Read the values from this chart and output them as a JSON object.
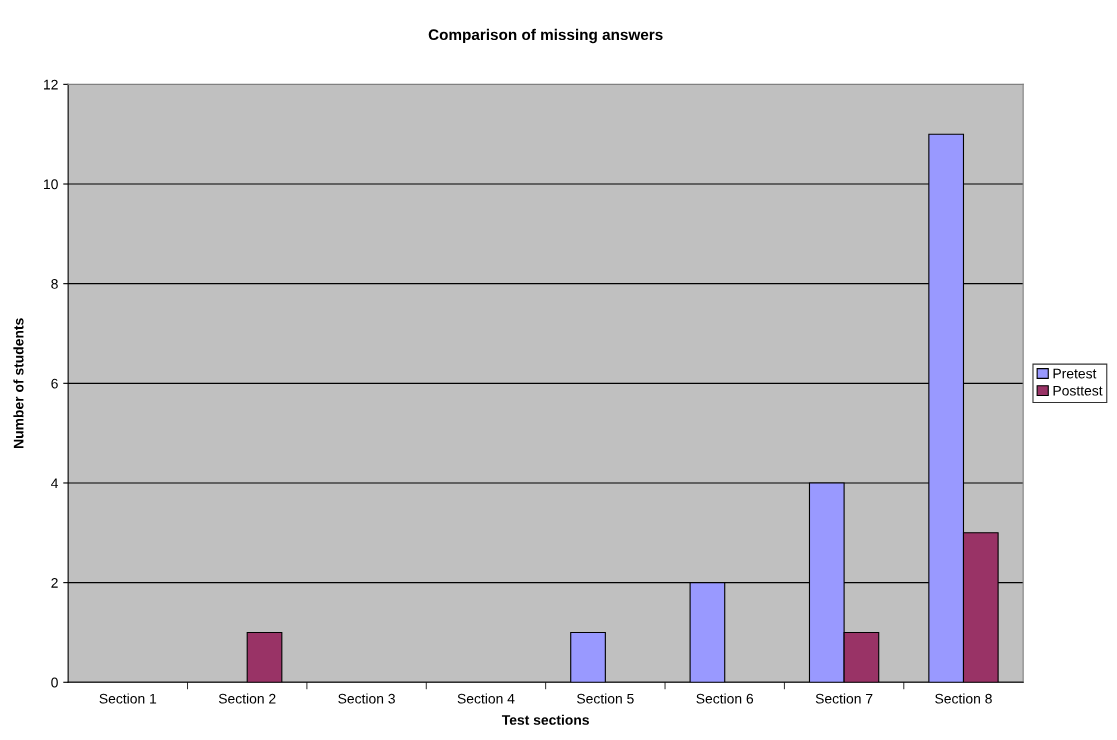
{
  "chart_data": {
    "type": "bar",
    "title": "Comparison of missing answers",
    "xlabel": "Test sections",
    "ylabel": "Number of students",
    "categories": [
      "Section 1",
      "Section 2",
      "Section 3",
      "Section 4",
      "Section 5",
      "Section 6",
      "Section 7",
      "Section 8"
    ],
    "series": [
      {
        "name": "Pretest",
        "color": "#9999ff",
        "values": [
          0,
          0,
          0,
          0,
          1,
          2,
          4,
          11
        ]
      },
      {
        "name": "Posttest",
        "color": "#993366",
        "values": [
          0,
          1,
          0,
          0,
          0,
          0,
          1,
          3
        ]
      }
    ],
    "ylim": [
      0,
      12
    ],
    "yticks": [
      0,
      2,
      4,
      6,
      8,
      10,
      12
    ],
    "grid": "y",
    "legend": "right"
  }
}
